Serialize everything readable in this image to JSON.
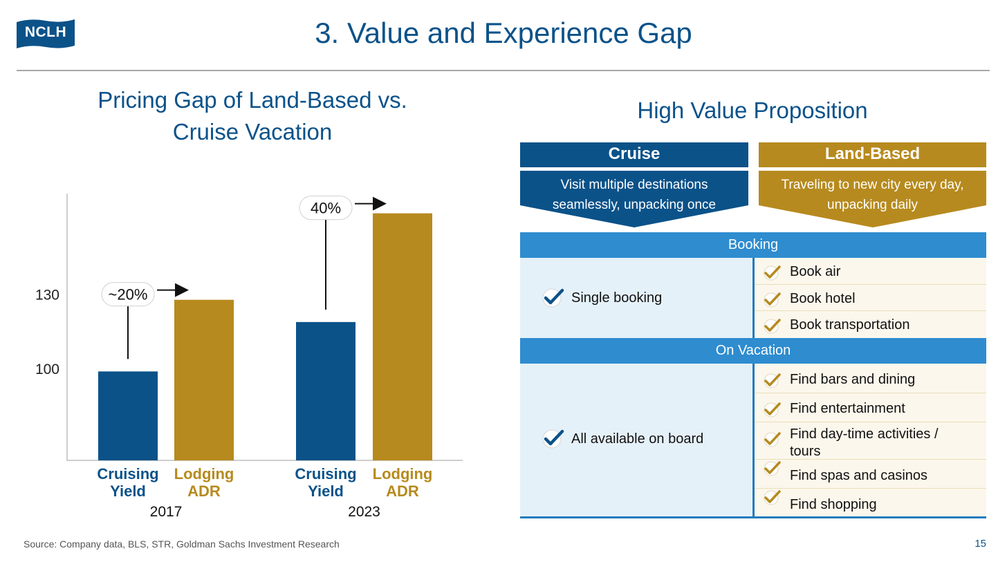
{
  "header": {
    "logo_text": "NCLH",
    "title": "3. Value and Experience Gap"
  },
  "chart_data": {
    "type": "bar",
    "title": "Pricing Gap of Land-Based vs. Cruise Vacation",
    "yticks": [
      100,
      130
    ],
    "ylim": [
      63,
      171
    ],
    "groups": [
      {
        "label": "2017",
        "bars": [
          {
            "label": "Cruising Yield",
            "value": 99,
            "series": "cruise"
          },
          {
            "label": "Lodging ADR",
            "value": 128,
            "series": "land"
          }
        ],
        "gap_label": "~20%"
      },
      {
        "label": "2023",
        "bars": [
          {
            "label": "Cruising Yield",
            "value": 119,
            "series": "cruise"
          },
          {
            "label": "Lodging ADR",
            "value": 163,
            "series": "land"
          }
        ],
        "gap_label": "40%"
      }
    ],
    "colors": {
      "cruise": "#0b5289",
      "land": "#b68a1e"
    }
  },
  "value_prop": {
    "title": "High Value Proposition",
    "cruise_header": "Cruise",
    "cruise_desc": "Visit multiple destinations seamlessly, unpacking once",
    "land_header": "Land-Based",
    "land_desc": "Traveling to new city every day, unpacking daily",
    "booking_label": "Booking",
    "booking_cruise": "Single booking",
    "booking_items": [
      "Book air",
      "Book hotel",
      "Book transportation"
    ],
    "vacation_label": "On Vacation",
    "vacation_cruise": "All available on board",
    "vacation_items": [
      "Find bars and dining",
      "Find entertainment",
      "Find day-time activities / tours",
      "Find spas and casinos",
      "Find shopping"
    ]
  },
  "footer": {
    "source": "Source: Company data, BLS, STR, Goldman Sachs Investment Research",
    "page_number": "15"
  }
}
